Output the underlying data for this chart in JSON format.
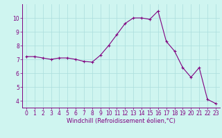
{
  "x": [
    0,
    1,
    2,
    3,
    4,
    5,
    6,
    7,
    8,
    9,
    10,
    11,
    12,
    13,
    14,
    15,
    16,
    17,
    18,
    19,
    20,
    21,
    22,
    23
  ],
  "y": [
    7.2,
    7.2,
    7.1,
    7.0,
    7.1,
    7.1,
    7.0,
    6.85,
    6.8,
    7.3,
    8.0,
    8.8,
    9.6,
    10.0,
    10.0,
    9.9,
    10.5,
    8.3,
    7.6,
    6.4,
    5.7,
    6.4,
    4.1,
    3.8
  ],
  "line_color": "#800080",
  "marker": "+",
  "marker_size": 3,
  "bg_color": "#cff5f0",
  "grid_color": "#aadddd",
  "axis_color": "#800080",
  "xlabel": "Windchill (Refroidissement éolien,°C)",
  "xlabel_fontsize": 6.0,
  "tick_fontsize": 5.5,
  "ylim": [
    3.5,
    11.0
  ],
  "xlim": [
    -0.5,
    23.5
  ],
  "yticks": [
    4,
    5,
    6,
    7,
    8,
    9,
    10
  ],
  "xticks": [
    0,
    1,
    2,
    3,
    4,
    5,
    6,
    7,
    8,
    9,
    10,
    11,
    12,
    13,
    14,
    15,
    16,
    17,
    18,
    19,
    20,
    21,
    22,
    23
  ]
}
